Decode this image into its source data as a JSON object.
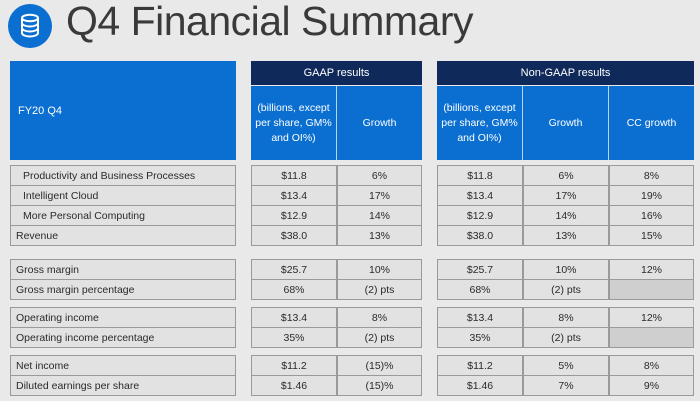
{
  "title": "Q4 Financial Summary",
  "icon": "database-icon",
  "header": {
    "period": "FY20 Q4",
    "gaap": "GAAP results",
    "nongaap": "Non-GAAP results",
    "units": "(billions, except per share, GM% and OI%)",
    "growth": "Growth",
    "cc_growth": "CC growth"
  },
  "groups": [
    {
      "rows": [
        {
          "label": "Productivity and Business Processes",
          "indent": true,
          "gaap": "$11.8",
          "gaap_growth": "6%",
          "ng": "$11.8",
          "ng_growth": "6%",
          "cc": "8%"
        },
        {
          "label": "Intelligent Cloud",
          "indent": true,
          "gaap": "$13.4",
          "gaap_growth": "17%",
          "ng": "$13.4",
          "ng_growth": "17%",
          "cc": "19%"
        },
        {
          "label": "More Personal Computing",
          "indent": true,
          "gaap": "$12.9",
          "gaap_growth": "14%",
          "ng": "$12.9",
          "ng_growth": "14%",
          "cc": "16%"
        },
        {
          "label": "Revenue",
          "indent": false,
          "gaap": "$38.0",
          "gaap_growth": "13%",
          "ng": "$38.0",
          "ng_growth": "13%",
          "cc": "15%"
        }
      ]
    },
    {
      "rows": [
        {
          "label": "Gross margin",
          "indent": false,
          "gaap": "$25.7",
          "gaap_growth": "10%",
          "ng": "$25.7",
          "ng_growth": "10%",
          "cc": "12%"
        },
        {
          "label": "Gross margin percentage",
          "indent": false,
          "gaap": "68%",
          "gaap_growth": "(2) pts",
          "ng": "68%",
          "ng_growth": "(2) pts",
          "cc": ""
        }
      ]
    },
    {
      "rows": [
        {
          "label": "Operating income",
          "indent": false,
          "gaap": "$13.4",
          "gaap_growth": "8%",
          "ng": "$13.4",
          "ng_growth": "8%",
          "cc": "12%"
        },
        {
          "label": "Operating income percentage",
          "indent": false,
          "gaap": "35%",
          "gaap_growth": "(2) pts",
          "ng": "35%",
          "ng_growth": "(2) pts",
          "cc": ""
        }
      ]
    },
    {
      "rows": [
        {
          "label": "Net income",
          "indent": false,
          "gaap": "$11.2",
          "gaap_growth": "(15)%",
          "ng": "$11.2",
          "ng_growth": "5%",
          "cc": "8%"
        },
        {
          "label": "Diluted earnings per share",
          "indent": false,
          "gaap": "$1.46",
          "gaap_growth": "(15)%",
          "ng": "$1.46",
          "ng_growth": "7%",
          "cc": "9%"
        }
      ]
    }
  ]
}
